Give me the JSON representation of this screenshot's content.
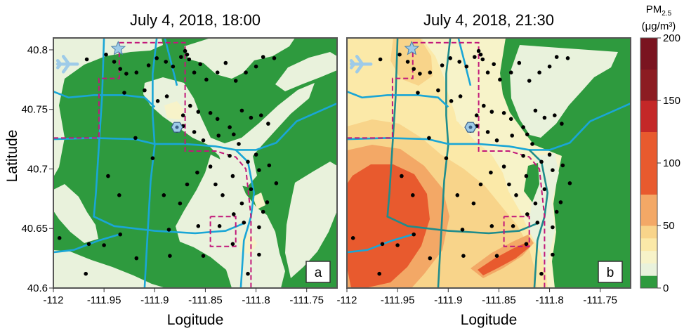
{
  "figure": {
    "panels": [
      {
        "id": "a",
        "title": "July 4, 2018, 18:00",
        "panel_label": "a"
      },
      {
        "id": "b",
        "title": "July 4, 2018, 21:30",
        "panel_label": "b"
      }
    ],
    "colorbar": {
      "title_main": "PM",
      "title_sub": "2.5",
      "title_unit": "(μg/m³)",
      "ticks": [
        "200",
        "150",
        "100",
        "50",
        "0"
      ]
    }
  },
  "chart_data": {
    "type": "heatmap",
    "xlabel": "Logitude",
    "ylabel": "Latitude",
    "xlim": [
      -112,
      -111.72
    ],
    "ylim": [
      40.6,
      40.81
    ],
    "xticks": [
      "-112",
      "-111.95",
      "-111.9",
      "-111.85",
      "-111.8",
      "-111.75"
    ],
    "yticks": [
      "40.8",
      "40.75",
      "40.7",
      "40.65",
      "40.6"
    ],
    "colorbar_range": [
      0,
      200
    ],
    "colorbar_bands": [
      {
        "from": 0,
        "to": 10,
        "color": "#2e9a3e"
      },
      {
        "from": 10,
        "to": 20,
        "color": "#e9f2dc"
      },
      {
        "from": 20,
        "to": 30,
        "color": "#f7f3c9"
      },
      {
        "from": 30,
        "to": 40,
        "color": "#fbe9a8"
      },
      {
        "from": 40,
        "to": 50,
        "color": "#f8d48a"
      },
      {
        "from": 50,
        "to": 75,
        "color": "#f3a866"
      },
      {
        "from": 75,
        "to": 100,
        "color": "#e85a2e"
      },
      {
        "from": 100,
        "to": 125,
        "color": "#e85a2e"
      },
      {
        "from": 125,
        "to": 150,
        "color": "#c42828"
      },
      {
        "from": 150,
        "to": 175,
        "color": "#8c1c22"
      },
      {
        "from": 175,
        "to": 200,
        "color": "#7a1420"
      }
    ],
    "colors": {
      "highway": "#1aa6d6",
      "highway_dark": "#1f8c8c",
      "boundary": "#c2187a",
      "sensor": "#000000",
      "landmark": "#9ecbe8"
    },
    "icons": [
      "airport-icon",
      "star-landmark-icon",
      "hexagon-landmark-icon"
    ],
    "sensors": [
      [
        -111.967,
        40.792
      ],
      [
        -111.948,
        40.796
      ],
      [
        -111.94,
        40.79
      ],
      [
        -111.934,
        40.784
      ],
      [
        -111.928,
        40.78
      ],
      [
        -111.918,
        40.781
      ],
      [
        -111.906,
        40.787
      ],
      [
        -111.898,
        40.793
      ],
      [
        -111.889,
        40.79
      ],
      [
        -111.882,
        40.786
      ],
      [
        -111.874,
        40.794
      ],
      [
        -111.87,
        40.799
      ],
      [
        -111.868,
        40.796
      ],
      [
        -111.866,
        40.792
      ],
      [
        -111.861,
        40.781
      ],
      [
        -111.855,
        40.788
      ],
      [
        -111.849,
        40.775
      ],
      [
        -111.838,
        40.781
      ],
      [
        -111.83,
        40.789
      ],
      [
        -111.82,
        40.774
      ],
      [
        -111.81,
        40.781
      ],
      [
        -111.8,
        40.786
      ],
      [
        -111.793,
        40.794
      ],
      [
        -111.782,
        40.793
      ],
      [
        -111.93,
        40.764
      ],
      [
        -111.91,
        40.766
      ],
      [
        -111.897,
        40.757
      ],
      [
        -111.888,
        40.761
      ],
      [
        -111.872,
        40.745
      ],
      [
        -111.865,
        40.753
      ],
      [
        -111.857,
        40.748
      ],
      [
        -111.845,
        40.747
      ],
      [
        -111.838,
        40.742
      ],
      [
        -111.826,
        40.735
      ],
      [
        -111.814,
        40.749
      ],
      [
        -111.805,
        40.743
      ],
      [
        -111.795,
        40.745
      ],
      [
        -111.788,
        40.738
      ],
      [
        -111.878,
        40.732
      ],
      [
        -111.872,
        40.736
      ],
      [
        -111.861,
        40.731
      ],
      [
        -111.852,
        40.724
      ],
      [
        -111.837,
        40.728
      ],
      [
        -111.822,
        40.729
      ],
      [
        -111.826,
        40.711
      ],
      [
        -111.817,
        40.721
      ],
      [
        -111.808,
        40.706
      ],
      [
        -111.8,
        40.712
      ],
      [
        -111.797,
        40.699
      ],
      [
        -111.787,
        40.703
      ],
      [
        -111.78,
        40.688
      ],
      [
        -111.789,
        40.672
      ],
      [
        -111.793,
        40.664
      ],
      [
        -111.797,
        40.651
      ],
      [
        -111.805,
        40.683
      ],
      [
        -111.814,
        40.671
      ],
      [
        -111.823,
        40.694
      ],
      [
        -111.833,
        40.678
      ],
      [
        -111.84,
        40.687
      ],
      [
        -111.845,
        40.702
      ],
      [
        -111.858,
        40.697
      ],
      [
        -111.868,
        40.687
      ],
      [
        -111.875,
        40.671
      ],
      [
        -111.891,
        40.678
      ],
      [
        -111.902,
        40.709
      ],
      [
        -111.919,
        40.726
      ],
      [
        -111.946,
        40.694
      ],
      [
        -111.935,
        40.678
      ],
      [
        -111.994,
        40.642
      ],
      [
        -111.965,
        40.637
      ],
      [
        -111.95,
        40.636
      ],
      [
        -111.918,
        40.625
      ],
      [
        -111.934,
        40.645
      ],
      [
        -111.886,
        40.649
      ],
      [
        -111.857,
        40.652
      ],
      [
        -111.836,
        40.652
      ],
      [
        -111.822,
        40.662
      ],
      [
        -111.812,
        40.655
      ],
      [
        -111.808,
        40.612
      ],
      [
        -111.797,
        40.628
      ],
      [
        -111.823,
        40.637
      ],
      [
        -111.885,
        40.627
      ],
      [
        -111.852,
        40.627
      ],
      [
        -111.968,
        40.612
      ]
    ],
    "landmarks": {
      "airport": [
        -111.986,
        40.788
      ],
      "star": [
        -111.936,
        40.801
      ],
      "hexagon": [
        -111.878,
        40.735
      ]
    }
  }
}
